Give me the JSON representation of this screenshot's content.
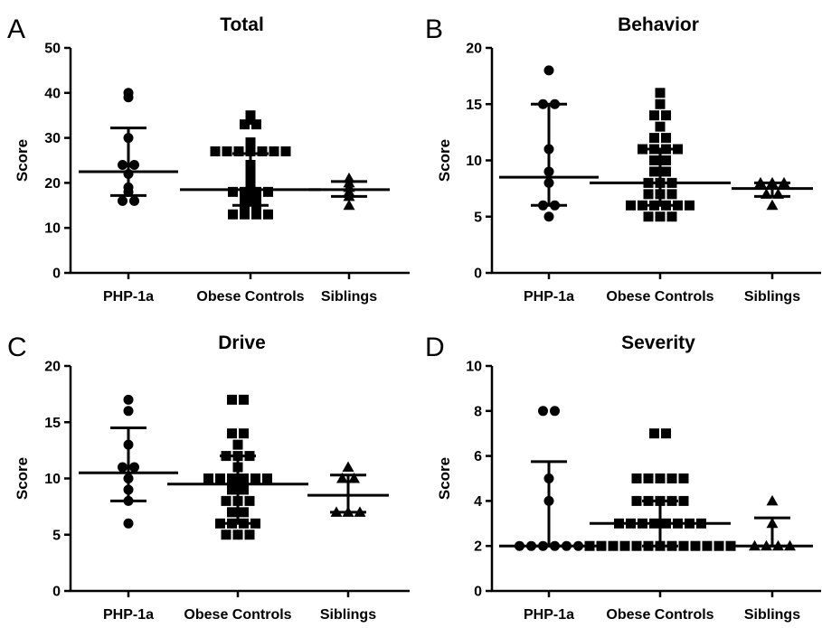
{
  "chart_data": [
    {
      "type": "scatter",
      "panel": "A",
      "title": "Total",
      "ylabel": "Score",
      "ylim": [
        0,
        50
      ],
      "yticks": [
        0,
        10,
        20,
        30,
        40,
        50
      ],
      "categories": [
        "PHP-1a",
        "Obese Controls",
        "Siblings"
      ],
      "series": [
        {
          "marker": "circle",
          "points": [
            40,
            39,
            30,
            24,
            24,
            22,
            19,
            18,
            16,
            16
          ],
          "median": 22.5,
          "error": [
            17.2,
            32.2
          ]
        },
        {
          "marker": "square",
          "points": [
            35,
            34,
            33,
            33,
            29,
            27,
            27,
            27,
            27,
            27,
            27,
            27,
            24,
            22,
            20,
            18,
            18,
            18,
            18,
            17,
            17,
            16,
            16,
            15,
            15,
            14,
            14,
            13,
            13,
            13,
            13
          ],
          "median": 18.5,
          "error": [
            15.0,
            26.5
          ]
        },
        {
          "marker": "triangle",
          "points": [
            21,
            20,
            19,
            18,
            17,
            15
          ],
          "median": 18.5,
          "error": [
            17.0,
            20.3
          ]
        }
      ]
    },
    {
      "type": "scatter",
      "panel": "B",
      "title": "Behavior",
      "ylabel": "Score",
      "ylim": [
        0,
        20
      ],
      "yticks": [
        0,
        5,
        10,
        15,
        20
      ],
      "categories": [
        "PHP-1a",
        "Obese Controls",
        "Siblings"
      ],
      "series": [
        {
          "marker": "circle",
          "points": [
            18,
            15,
            15,
            11,
            9,
            8,
            6,
            6,
            5
          ],
          "median": 8.5,
          "error": [
            6.0,
            15.0
          ]
        },
        {
          "marker": "square",
          "points": [
            16,
            15,
            14,
            14,
            13,
            12,
            12,
            11,
            11,
            11,
            11,
            10,
            10,
            9,
            9,
            8,
            8,
            8,
            7,
            7,
            7,
            6,
            6,
            6,
            6,
            6,
            6,
            5,
            5,
            5
          ],
          "median": 8.0,
          "error": [
            6.0,
            11.0
          ]
        },
        {
          "marker": "triangle",
          "points": [
            8,
            8,
            8,
            7,
            7,
            6
          ],
          "median": 7.5,
          "error": [
            6.8,
            8.0
          ]
        }
      ]
    },
    {
      "type": "scatter",
      "panel": "C",
      "title": "Drive",
      "ylabel": "Score",
      "ylim": [
        0,
        20
      ],
      "yticks": [
        0,
        5,
        10,
        15,
        20
      ],
      "categories": [
        "PHP-1a",
        "Obese Controls",
        "Siblings"
      ],
      "series": [
        {
          "marker": "circle",
          "points": [
            17,
            16,
            13,
            11,
            11,
            10,
            9,
            8,
            6
          ],
          "median": 10.5,
          "error": [
            8.0,
            14.5
          ]
        },
        {
          "marker": "square",
          "points": [
            17,
            17,
            14,
            14,
            13,
            12,
            12,
            12,
            11,
            10,
            10,
            10,
            10,
            10,
            10,
            9,
            9,
            8,
            8,
            8,
            7,
            7,
            6,
            6,
            6,
            6,
            5,
            5,
            5
          ],
          "median": 9.5,
          "error": [
            6.0,
            12.0
          ]
        },
        {
          "marker": "triangle",
          "points": [
            11,
            10,
            10,
            7,
            7,
            7
          ],
          "median": 8.5,
          "error": [
            7.0,
            10.3
          ]
        }
      ]
    },
    {
      "type": "scatter",
      "panel": "D",
      "title": "Severity",
      "ylabel": "Score",
      "ylim": [
        0,
        10
      ],
      "yticks": [
        0,
        2,
        4,
        6,
        8,
        10
      ],
      "categories": [
        "PHP-1a",
        "Obese Controls",
        "Siblings"
      ],
      "series": [
        {
          "marker": "circle",
          "points": [
            8,
            8,
            5,
            4,
            2,
            2,
            2,
            2,
            2,
            2
          ],
          "median": 2.0,
          "error": [
            2.0,
            5.75
          ]
        },
        {
          "marker": "square",
          "points": [
            7,
            7,
            5,
            5,
            5,
            5,
            5,
            4,
            4,
            4,
            4,
            4,
            3,
            3,
            3,
            3,
            3,
            3,
            3,
            3,
            2,
            2,
            2,
            2,
            2,
            2,
            2,
            2,
            2,
            2,
            2,
            2,
            2
          ],
          "median": 3.0,
          "error": [
            2.0,
            4.0
          ]
        },
        {
          "marker": "triangle",
          "points": [
            4,
            3,
            2,
            2,
            2,
            2
          ],
          "median": 2.0,
          "error": [
            2.0,
            3.25
          ]
        }
      ]
    }
  ]
}
